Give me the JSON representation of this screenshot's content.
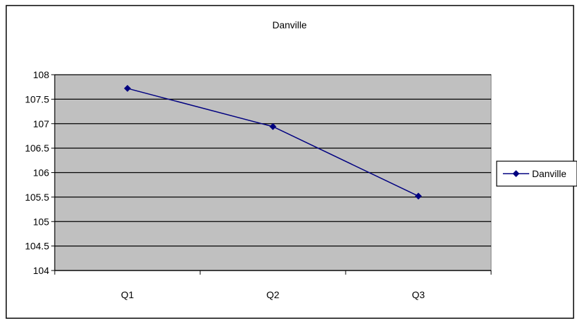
{
  "chart_data": {
    "type": "line",
    "title": "Danville",
    "xlabel": "",
    "ylabel": "",
    "categories": [
      "Q1",
      "Q2",
      "Q3"
    ],
    "series": [
      {
        "name": "Danville",
        "values": [
          107.72,
          106.94,
          105.52
        ]
      }
    ],
    "ylim": [
      104,
      108
    ],
    "yticks": [
      104,
      104.5,
      105,
      105.5,
      106,
      106.5,
      107,
      107.5,
      108
    ],
    "ytick_labels": [
      "104",
      "104.5",
      "105",
      "105.5",
      "106",
      "106.5",
      "107",
      "107.5",
      "108"
    ],
    "grid": true,
    "legend_position": "right",
    "colors": {
      "plot_background": "#c0c0c0",
      "series_line": "#000080",
      "gridline": "#000000"
    }
  }
}
